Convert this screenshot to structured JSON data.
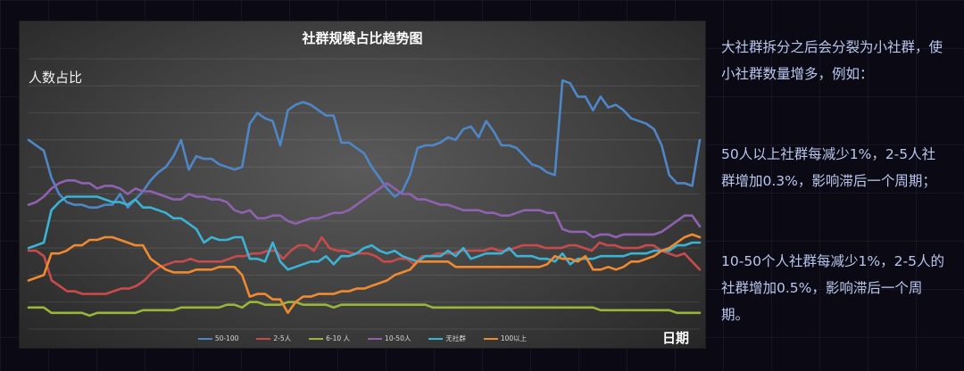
{
  "chart_data": {
    "type": "line",
    "title": "社群规模占比趋势图",
    "ylabel": "人数占比",
    "xlabel": "日期",
    "grid": true,
    "legend_position": "bottom",
    "series": [
      {
        "name": "50-100",
        "color": "#4f86c6",
        "values": [
          40,
          38,
          36,
          26,
          20,
          17,
          16,
          16,
          15,
          15,
          16,
          16,
          20,
          15,
          18,
          21,
          25,
          28,
          30,
          34,
          40,
          29,
          34,
          33,
          33,
          31,
          30,
          29,
          30,
          46,
          50,
          48,
          47,
          38,
          51,
          53,
          54,
          53,
          51,
          49,
          49,
          39,
          39,
          37,
          35,
          30,
          26,
          22,
          19,
          21,
          27,
          37,
          38,
          38,
          39,
          41,
          40,
          44,
          45,
          41,
          47,
          43,
          38,
          38,
          37,
          34,
          31,
          30,
          28,
          27,
          62,
          61,
          56,
          56,
          51,
          56,
          52,
          53,
          51,
          48,
          47,
          46,
          44,
          38,
          27,
          24,
          24,
          23,
          40
        ]
      },
      {
        "name": "2-5人",
        "color": "#c84b4b",
        "values": [
          -1,
          -1,
          -3,
          -12,
          -14,
          -16,
          -16,
          -17,
          -17,
          -17,
          -17,
          -16,
          -15,
          -15,
          -14,
          -12,
          -9,
          -7,
          -6,
          -5,
          -5,
          -4,
          -5,
          -5,
          -5,
          -5,
          -4,
          -3,
          -3,
          -2,
          -2,
          -1,
          -1,
          -4,
          -1,
          1,
          1,
          -1,
          4,
          0,
          -1,
          -1,
          -2,
          -2,
          -2,
          -3,
          -5,
          -5,
          -4,
          -4,
          -6,
          -3,
          -3,
          -2,
          -2,
          -2,
          -1,
          -1,
          -1,
          -1,
          0,
          -1,
          -1,
          0,
          1,
          1,
          1,
          0,
          0,
          0,
          1,
          1,
          0,
          -1,
          2,
          1,
          1,
          0,
          0,
          0,
          1,
          1,
          -1,
          -2,
          -3,
          -2,
          -5,
          -8
        ]
      },
      {
        "name": "6-10 人",
        "color": "#9ab63a",
        "values": [
          -22,
          -22,
          -22,
          -24,
          -24,
          -24,
          -24,
          -24,
          -25,
          -24,
          -24,
          -24,
          -24,
          -24,
          -24,
          -23,
          -23,
          -23,
          -23,
          -23,
          -22,
          -22,
          -22,
          -22,
          -22,
          -22,
          -21,
          -21,
          -22,
          -20,
          -20,
          -21,
          -21,
          -21,
          -20,
          -20,
          -21,
          -21,
          -21,
          -21,
          -22,
          -21,
          -21,
          -21,
          -21,
          -21,
          -21,
          -21,
          -21,
          -21,
          -21,
          -21,
          -21,
          -22,
          -22,
          -22,
          -22,
          -22,
          -22,
          -22,
          -22,
          -22,
          -22,
          -22,
          -22,
          -22,
          -22,
          -22,
          -22,
          -22,
          -22,
          -22,
          -22,
          -22,
          -22,
          -23,
          -23,
          -23,
          -23,
          -23,
          -23,
          -23,
          -23,
          -23,
          -23,
          -24,
          -24,
          -24,
          -24
        ]
      },
      {
        "name": "10-50人",
        "color": "#8e62b0",
        "values": [
          16,
          17,
          19,
          22,
          24,
          25,
          25,
          24,
          24,
          22,
          23,
          23,
          22,
          20,
          22,
          21,
          21,
          20,
          19,
          18,
          18,
          20,
          19,
          19,
          18,
          18,
          17,
          14,
          13,
          14,
          11,
          11,
          12,
          12,
          10,
          9,
          10,
          11,
          11,
          12,
          13,
          13,
          14,
          16,
          18,
          20,
          22,
          24,
          22,
          20,
          20,
          18,
          18,
          17,
          16,
          16,
          15,
          14,
          14,
          14,
          13,
          13,
          12,
          12,
          13,
          14,
          14,
          14,
          13,
          13,
          7,
          6,
          6,
          6,
          4,
          5,
          5,
          4,
          5,
          5,
          5,
          5,
          5,
          6,
          8,
          10,
          12,
          12,
          8
        ]
      },
      {
        "name": "无社群",
        "color": "#3ab3d4",
        "values": [
          0,
          1,
          2,
          14,
          17,
          19,
          19,
          19,
          19,
          19,
          18,
          17,
          17,
          16,
          18,
          15,
          15,
          14,
          13,
          11,
          11,
          9,
          7,
          2,
          4,
          3,
          3,
          4,
          4,
          -4,
          -4,
          -5,
          2,
          -5,
          -8,
          -7,
          -6,
          -5,
          -5,
          -3,
          -6,
          -3,
          -3,
          -2,
          0,
          1,
          -1,
          -2,
          -1,
          -3,
          -4,
          -5,
          -3,
          -3,
          -3,
          -1,
          -3,
          0,
          -4,
          -3,
          -2,
          -2,
          -2,
          0,
          -3,
          -3,
          -3,
          -4,
          -4,
          -5,
          -2,
          -6,
          -4,
          -4,
          -4,
          -3,
          -3,
          -3,
          -3,
          -2,
          -2,
          -2,
          -1,
          -1,
          -1,
          1,
          1,
          2,
          2
        ]
      },
      {
        "name": "100以上",
        "color": "#f08a30",
        "values": [
          -12,
          -11,
          -10,
          -2,
          -2,
          -1,
          1,
          1,
          3,
          3,
          4,
          4,
          3,
          2,
          1,
          1,
          -4,
          -6,
          -8,
          -9,
          -9,
          -9,
          -8,
          -8,
          -8,
          -7,
          -7,
          -7,
          -10,
          -18,
          -17,
          -17,
          -19,
          -19,
          -24,
          -20,
          -18,
          -18,
          -17,
          -17,
          -17,
          -16,
          -16,
          -15,
          -15,
          -14,
          -13,
          -12,
          -10,
          -9,
          -8,
          -5,
          -5,
          -5,
          -5,
          -5,
          -7,
          -7,
          -7,
          -7,
          -7,
          -7,
          -7,
          -7,
          -7,
          -7,
          -7,
          -7,
          -6,
          -3,
          -4,
          -4,
          -5,
          -3,
          -8,
          -8,
          -7,
          -8,
          -7,
          -5,
          -5,
          -4,
          -3,
          -1,
          0,
          2,
          4,
          5,
          4
        ]
      }
    ]
  },
  "side_text": {
    "para1": "大社群拆分之后会分裂为小社群，使小社群数量增多，例如：",
    "para2": "50人以上社群每减少1%，2-5人社群增加0.3%，影响滞后一个周期；",
    "para3": "10-50个人社群每减少1%，2-5人的社群增加0.5%，影响滞后一个周期。"
  }
}
